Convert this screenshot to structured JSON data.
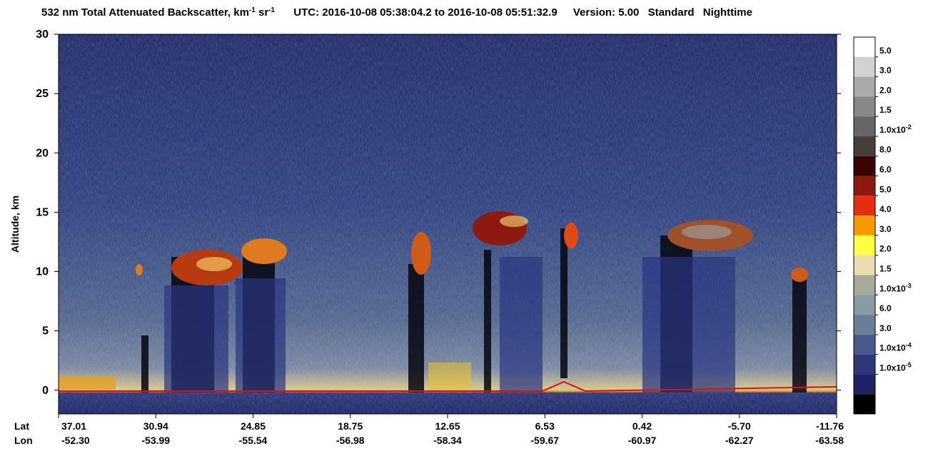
{
  "chart_data": {
    "type": "curtain",
    "title": {
      "t1": "532 nm Total Attenuated Backscatter, km",
      "s1": "-1",
      "t2": " sr",
      "s2": "-1",
      "utc": "UTC:  2016-10-08 05:38:04.2  to  2016-10-08 05:51:32.9",
      "version": "Version: 5.00",
      "mode": "Standard",
      "time": "Nighttime"
    },
    "y_label": "Altitude, km",
    "ylim": [
      -2,
      30
    ],
    "yticks": [
      0,
      5,
      10,
      15,
      20,
      25,
      30
    ],
    "lat_name": "Lat",
    "lon_name": "Lon",
    "lat_labels": [
      "37.01",
      "30.94",
      "24.85",
      "18.75",
      "12.65",
      "6.53",
      "0.42",
      "-5.70",
      "-11.76"
    ],
    "lon_labels": [
      "-52.30",
      "-53.99",
      "-55.54",
      "-56.98",
      "-58.34",
      "-59.67",
      "-60.97",
      "-62.27",
      "-63.58"
    ],
    "colorbar": {
      "colors": [
        "#ffffff",
        "#d2d2d2",
        "#aaaaaa",
        "#888888",
        "#666666",
        "#473e3a",
        "#3a0404",
        "#8c1a10",
        "#e62e0e",
        "#f59a00",
        "#ffff44",
        "#e8dcb0",
        "#a8ab9c",
        "#8a9aa2",
        "#6a7e98",
        "#4a5a88",
        "#2c387a",
        "#1e2266",
        "#000000"
      ],
      "labels": [
        "5.0",
        "3.0",
        "2.0",
        "1.5",
        {
          "text": "1.0x10",
          "sup": "-2"
        },
        "8.0",
        "6.0",
        "5.0",
        "4.0",
        "3.0",
        "2.0",
        "1.5",
        {
          "text": "1.0x10",
          "sup": "-3"
        },
        "6.0",
        "3.0",
        {
          "text": "1.0x10",
          "sup": "-4"
        },
        {
          "text": "1.0x10",
          "sup": "-5"
        }
      ]
    }
  }
}
